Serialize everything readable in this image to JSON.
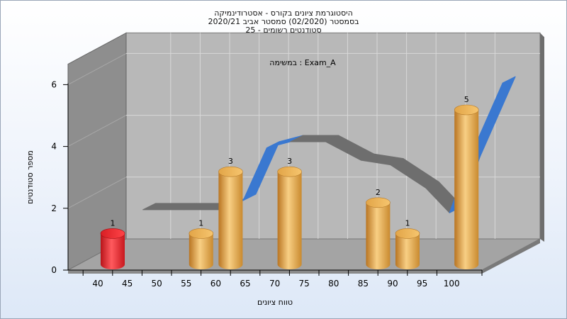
{
  "chart_data": {
    "type": "bar",
    "title_lines": [
      "היסטוגרמת ציונים בקורס - אסטרודינמיקה",
      "בסמסטר  (02/2020)  סמסטר אביב 2020/21",
      "סטודנטים רשומים - 25"
    ],
    "annotation": "במשימה : Exam_A",
    "xlabel": "טווח ציונים",
    "ylabel": "מספר סטודנטים",
    "x_ticks": [
      40,
      45,
      50,
      55,
      60,
      65,
      70,
      75,
      80,
      85,
      90,
      95,
      100
    ],
    "y_ticks": [
      0,
      2,
      4,
      6
    ],
    "ylim": [
      0,
      6
    ],
    "bars": [
      {
        "x": 40,
        "value": 1,
        "color": "red"
      },
      {
        "x": 55,
        "value": 1,
        "color": "orange"
      },
      {
        "x": 60,
        "value": 3,
        "color": "orange"
      },
      {
        "x": 70,
        "value": 3,
        "color": "orange"
      },
      {
        "x": 85,
        "value": 2,
        "color": "orange"
      },
      {
        "x": 90,
        "value": 1,
        "color": "orange"
      },
      {
        "x": 100,
        "value": 5,
        "color": "orange"
      }
    ],
    "curve": [
      {
        "x": 45,
        "y": 1.7
      },
      {
        "x": 52,
        "y": 1.7
      },
      {
        "x": 58,
        "y": 1.7
      },
      {
        "x": 62,
        "y": 2.0
      },
      {
        "x": 66,
        "y": 3.7
      },
      {
        "x": 70,
        "y": 3.9
      },
      {
        "x": 76,
        "y": 3.9
      },
      {
        "x": 82,
        "y": 3.3
      },
      {
        "x": 87,
        "y": 3.15
      },
      {
        "x": 93,
        "y": 2.4
      },
      {
        "x": 97,
        "y": 1.6
      },
      {
        "x": 100,
        "y": 3.2
      },
      {
        "x": 106,
        "y": 5.8
      }
    ],
    "grid": true,
    "colors": {
      "red_bar": "#e8232b",
      "orange_bar": "#e9a84a",
      "curve_front": "#6e6e6e",
      "curve_rise": "#3a78d0",
      "back_wall": "#b8b8b8",
      "side_wall": "#8e8e8e",
      "floor": "#a4a4a4"
    }
  }
}
